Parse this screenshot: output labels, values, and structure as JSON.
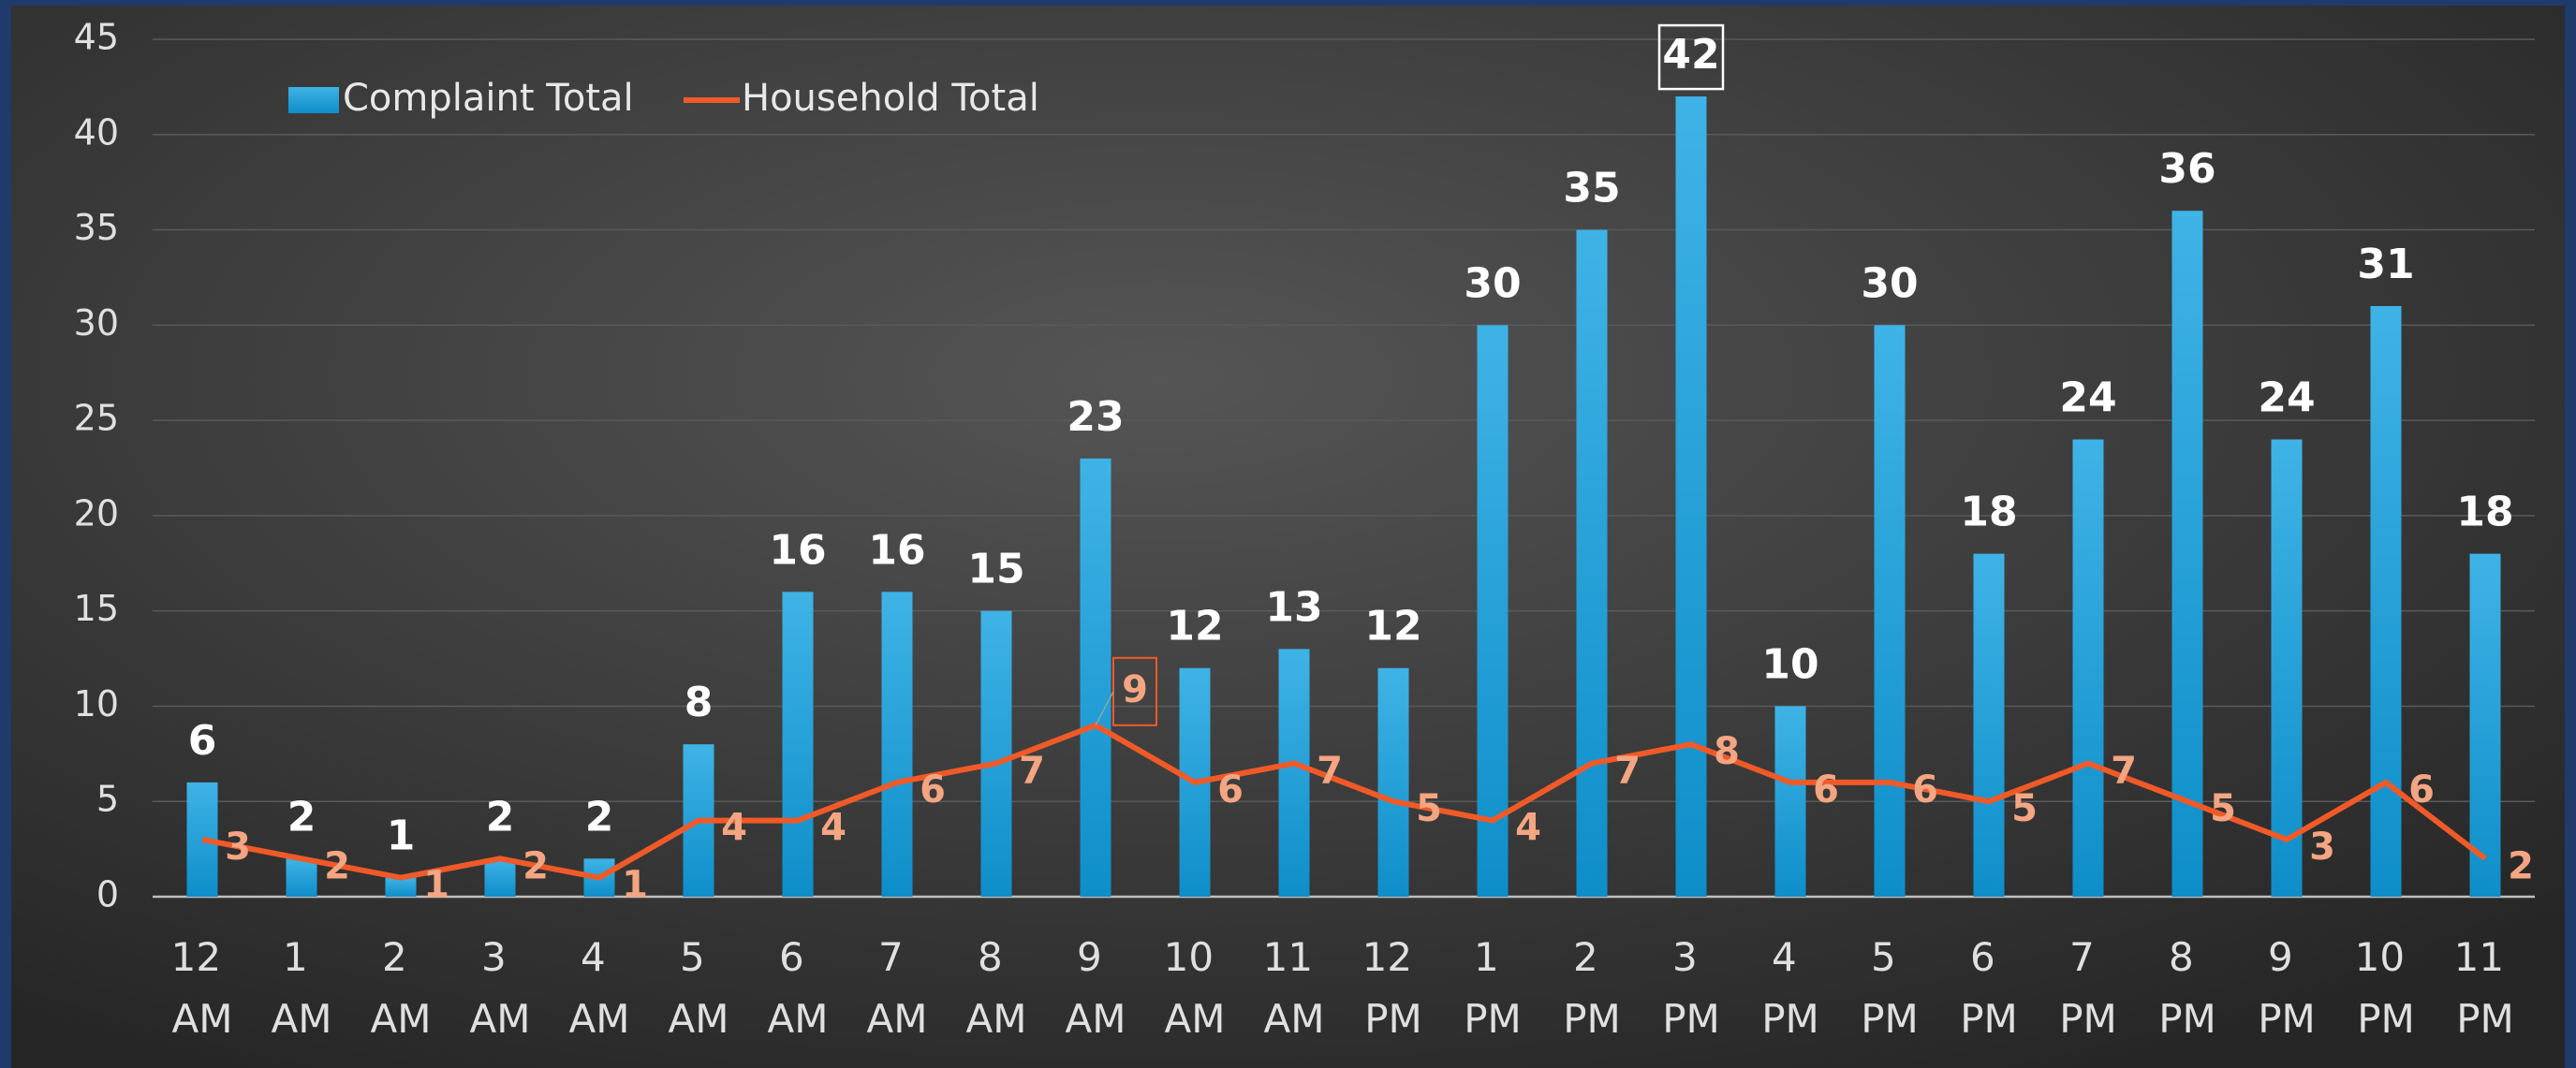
{
  "chart_data": {
    "type": "bar_line",
    "categories": [
      "12 AM",
      "1 AM",
      "2 AM",
      "3 AM",
      "4 AM",
      "5 AM",
      "6 AM",
      "7 AM",
      "8 AM",
      "9 AM",
      "10 AM",
      "11 AM",
      "12 PM",
      "1 PM",
      "2 PM",
      "3 PM",
      "4 PM",
      "5 PM",
      "6 PM",
      "7 PM",
      "8 PM",
      "9 PM",
      "10 PM",
      "11 PM"
    ],
    "series": [
      {
        "name": "Complaint Total",
        "type": "bar",
        "color": "#1aa3dc",
        "values": [
          6,
          2,
          1,
          2,
          2,
          8,
          16,
          16,
          15,
          23,
          12,
          13,
          12,
          30,
          35,
          42,
          10,
          30,
          18,
          24,
          36,
          24,
          31,
          18
        ]
      },
      {
        "name": "Household Total",
        "type": "line",
        "color": "#f05a28",
        "values": [
          3,
          2,
          1,
          2,
          1,
          4,
          4,
          6,
          7,
          9,
          6,
          7,
          5,
          4,
          7,
          8,
          6,
          6,
          5,
          7,
          5,
          3,
          6,
          2
        ]
      }
    ],
    "ylim": [
      0,
      45
    ],
    "yticks": [
      0,
      5,
      10,
      15,
      20,
      25,
      30,
      35,
      40,
      45
    ],
    "grid": true,
    "legend": "top-left"
  }
}
